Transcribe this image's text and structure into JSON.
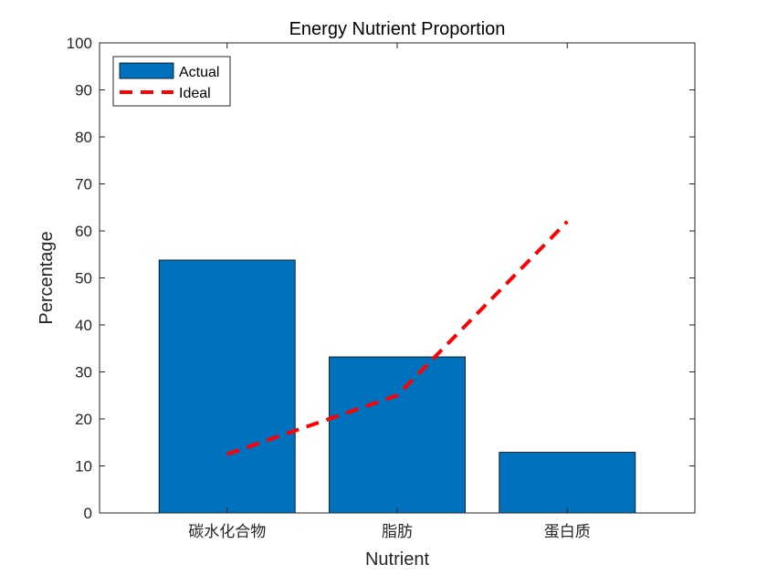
{
  "chart_data": {
    "type": "bar",
    "title": "Energy Nutrient Proportion",
    "xlabel": "Nutrient",
    "ylabel": "Percentage",
    "categories": [
      "碳水化合物",
      "脂肪",
      "蛋白质"
    ],
    "ylim": [
      0,
      100
    ],
    "yticks": [
      0,
      10,
      20,
      30,
      40,
      50,
      60,
      70,
      80,
      90,
      100
    ],
    "xlim": [
      0.25,
      3.75
    ],
    "grid": false,
    "legend_position": "top-left",
    "series": [
      {
        "name": "Actual",
        "type": "bar",
        "color": "#0072BD",
        "values": [
          53.8,
          33.2,
          12.9
        ]
      },
      {
        "name": "Ideal",
        "type": "line",
        "style": "dashed",
        "color": "#FF0000",
        "values": [
          12.5,
          25,
          62
        ]
      }
    ]
  }
}
